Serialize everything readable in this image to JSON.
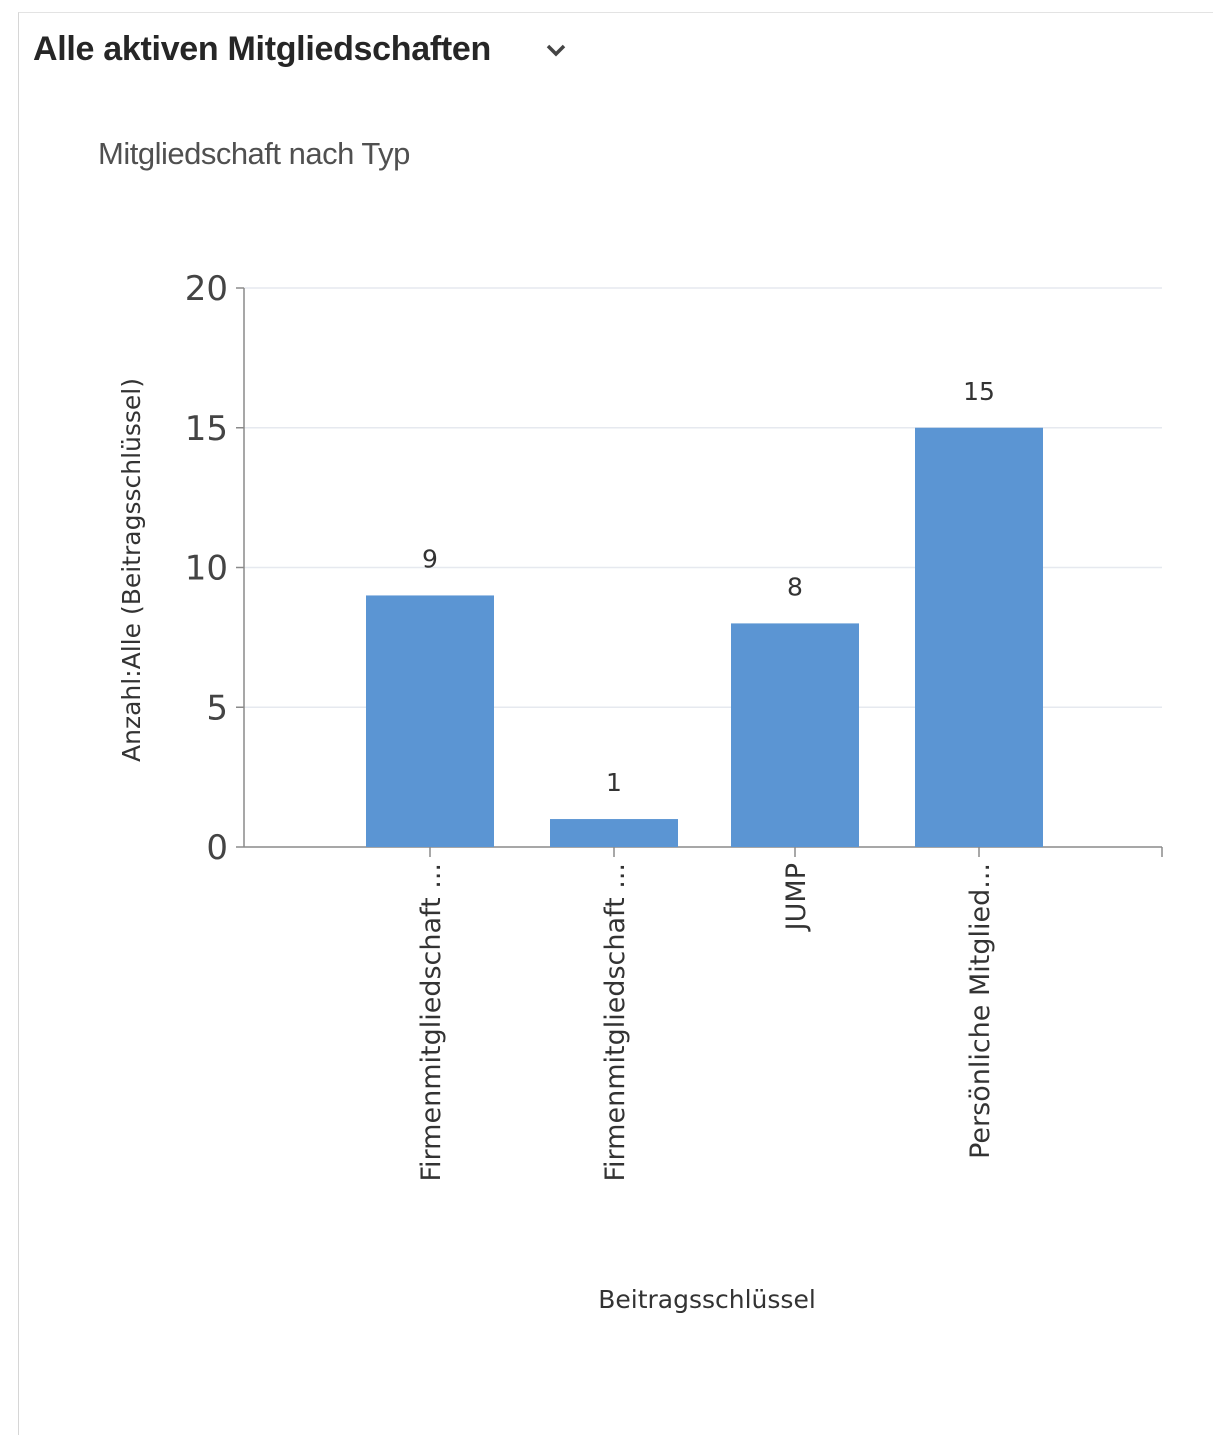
{
  "view": {
    "title": "Alle aktiven Mitgliedschaften",
    "chevron_icon": "chevron-down-icon"
  },
  "chart_data": {
    "type": "bar",
    "title": "Mitgliedschaft nach Typ",
    "xlabel": "Beitragsschlüssel",
    "ylabel": "Anzahl:Alle (Beitragsschlüssel)",
    "categories": [
      "Firmenmitgliedschaft ...",
      "Firmenmitgliedschaft ...",
      "JUMP",
      "Persönliche Mitglied..."
    ],
    "values": [
      9,
      1,
      8,
      15
    ],
    "ylim": [
      0,
      20
    ],
    "yticks": [
      0,
      5,
      10,
      15,
      20
    ],
    "grid": true,
    "bar_color": "#5B95D3"
  }
}
